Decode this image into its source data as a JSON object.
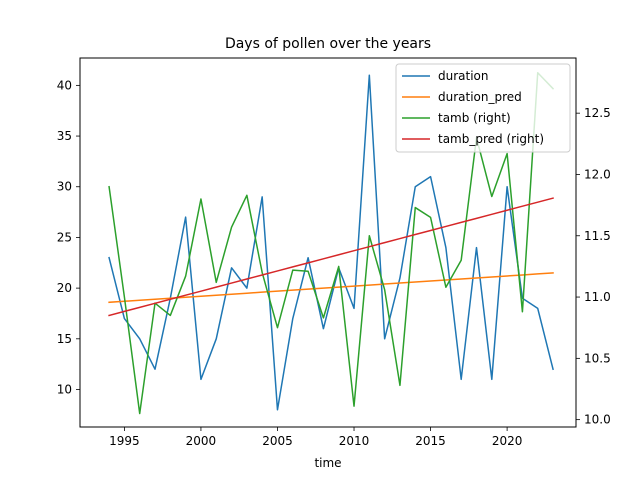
{
  "chart_data": {
    "type": "line",
    "title": "Days of pollen over the years",
    "xlabel": "time",
    "ylabel": "",
    "ylabel_right": "",
    "xlim": [
      1992.1,
      2024.5
    ],
    "ylim": [
      6.3,
      42.7
    ],
    "ylim_right": [
      9.94,
      12.95
    ],
    "x_ticks": [
      1995,
      2000,
      2005,
      2010,
      2015,
      2020
    ],
    "y_ticks": [
      10,
      15,
      20,
      25,
      30,
      35,
      40
    ],
    "y_ticks_right": [
      10.0,
      10.5,
      11.0,
      11.5,
      12.0,
      12.5
    ],
    "x_tick_labels": [
      "1995",
      "2000",
      "2005",
      "2010",
      "2015",
      "2020"
    ],
    "y_tick_labels": [
      "10",
      "15",
      "20",
      "25",
      "30",
      "35",
      "40"
    ],
    "y_tick_labels_right": [
      "10.0",
      "10.5",
      "11.0",
      "11.5",
      "12.0",
      "12.5"
    ],
    "grid": false,
    "legend_position": "top-right",
    "x": [
      1994,
      1995,
      1996,
      1997,
      1998,
      1999,
      2000,
      2001,
      2002,
      2003,
      2004,
      2005,
      2006,
      2007,
      2008,
      2009,
      2010,
      2011,
      2012,
      2013,
      2014,
      2015,
      2016,
      2017,
      2018,
      2019,
      2020,
      2021,
      2022,
      2023
    ],
    "series": [
      {
        "name": "duration",
        "axis": "left",
        "color": "#1f77b4",
        "values": [
          23,
          17,
          15,
          12,
          19,
          27,
          11,
          15,
          22,
          20,
          29,
          8,
          17,
          23,
          16,
          22,
          18,
          41,
          15,
          21,
          30,
          31,
          24,
          11,
          24,
          11,
          30,
          19,
          18,
          12
        ]
      },
      {
        "name": "duration_pred",
        "axis": "left",
        "color": "#ff7f0e",
        "values": [
          18.6,
          18.7,
          18.8,
          18.9,
          19.0,
          19.1,
          19.2,
          19.3,
          19.4,
          19.5,
          19.6,
          19.7,
          19.8,
          19.9,
          20.0,
          20.1,
          20.2,
          20.3,
          20.4,
          20.5,
          20.6,
          20.7,
          20.8,
          20.9,
          21.0,
          21.1,
          21.2,
          21.3,
          21.4,
          21.5
        ]
      },
      {
        "name": "tamb (right)",
        "axis": "right",
        "color": "#2ca02c",
        "values": [
          11.9,
          11.0,
          10.05,
          10.95,
          10.85,
          11.17,
          11.8,
          11.12,
          11.57,
          11.83,
          11.2,
          10.75,
          11.22,
          11.21,
          10.83,
          11.25,
          10.11,
          11.5,
          11.06,
          10.28,
          11.73,
          11.65,
          11.08,
          11.3,
          12.3,
          11.82,
          12.17,
          10.88,
          12.83,
          12.7
        ]
      },
      {
        "name": "tamb_pred (right)",
        "axis": "right",
        "color": "#d62728",
        "values": [
          10.85,
          10.883,
          10.916,
          10.949,
          10.982,
          11.015,
          11.048,
          11.081,
          11.114,
          11.147,
          11.18,
          11.213,
          11.246,
          11.279,
          11.312,
          11.345,
          11.378,
          11.411,
          11.444,
          11.477,
          11.51,
          11.543,
          11.576,
          11.609,
          11.642,
          11.675,
          11.708,
          11.741,
          11.774,
          11.807
        ]
      }
    ]
  }
}
